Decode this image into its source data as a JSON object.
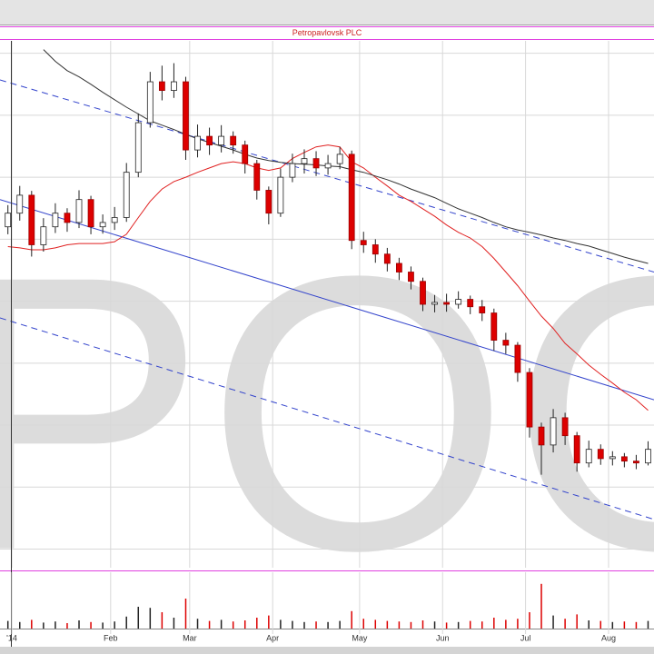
{
  "chart_data": {
    "type": "candlestick",
    "title": "Petropavlovsk PLC",
    "watermark": "POG",
    "x": [
      2,
      5,
      8,
      11,
      14,
      17,
      20,
      23,
      26,
      29,
      32,
      35,
      38,
      41,
      44,
      47,
      50,
      53,
      56,
      59,
      62,
      65,
      68,
      71,
      74,
      77,
      80,
      83,
      86,
      89,
      92,
      95,
      98,
      101,
      104,
      107,
      110,
      113,
      116,
      119,
      122,
      125,
      128,
      131,
      134,
      137,
      140,
      143,
      146,
      149,
      152,
      155,
      158,
      161,
      164
    ],
    "open": [
      62.0,
      64.2,
      67.1,
      59.1,
      62.0,
      64.2,
      62.7,
      66.4,
      62.0,
      62.7,
      63.5,
      70.8,
      78.8,
      85.4,
      84.0,
      85.4,
      74.4,
      76.6,
      75.2,
      76.6,
      75.2,
      72.2,
      67.9,
      64.2,
      70.0,
      72.2,
      73.0,
      71.5,
      72.2,
      73.7,
      59.8,
      59.1,
      57.6,
      56.1,
      54.7,
      53.2,
      49.5,
      49.8,
      49.5,
      50.3,
      49.1,
      48.1,
      43.7,
      42.9,
      38.5,
      29.7,
      26.8,
      31.2,
      28.3,
      23.9,
      26.1,
      24.6,
      24.9,
      24.2,
      23.9
    ],
    "high": [
      65.5,
      68.6,
      67.8,
      63.4,
      65.8,
      65.0,
      67.9,
      67.0,
      64.0,
      65.2,
      72.3,
      80.3,
      87.0,
      88.0,
      88.4,
      86.2,
      78.5,
      78.0,
      78.4,
      77.4,
      75.9,
      72.8,
      68.5,
      71.4,
      73.8,
      74.5,
      74.2,
      73.6,
      74.9,
      74.3,
      61.2,
      60.0,
      58.6,
      57.0,
      55.6,
      53.8,
      51.0,
      51.2,
      51.6,
      50.9,
      50.2,
      48.8,
      44.9,
      43.4,
      39.2,
      30.4,
      32.6,
      32.0,
      28.9,
      27.5,
      26.9,
      25.8,
      25.5,
      25.2,
      27.4
    ],
    "low": [
      60.8,
      63.0,
      57.2,
      58.0,
      61.0,
      61.2,
      61.8,
      60.8,
      60.9,
      61.5,
      62.8,
      70.0,
      78.0,
      82.4,
      82.8,
      72.8,
      73.2,
      73.6,
      74.0,
      73.8,
      70.6,
      66.4,
      62.4,
      63.6,
      69.2,
      70.6,
      70.2,
      70.4,
      71.3,
      58.4,
      57.8,
      56.2,
      54.8,
      53.4,
      51.9,
      48.4,
      48.2,
      48.3,
      48.8,
      47.9,
      46.8,
      42.0,
      41.5,
      37.0,
      28.0,
      22.0,
      25.6,
      26.8,
      22.5,
      23.2,
      23.6,
      23.5,
      23.2,
      22.9,
      23.5
    ],
    "close": [
      64.2,
      67.1,
      59.1,
      62.0,
      64.2,
      62.7,
      66.4,
      62.0,
      62.7,
      63.5,
      70.8,
      78.8,
      85.4,
      84.0,
      85.4,
      74.4,
      76.6,
      75.2,
      76.6,
      75.2,
      72.2,
      67.9,
      64.2,
      70.0,
      72.2,
      73.0,
      71.5,
      72.2,
      73.7,
      59.8,
      59.1,
      57.6,
      56.1,
      54.7,
      53.2,
      49.5,
      49.8,
      49.5,
      50.3,
      49.1,
      48.1,
      43.7,
      42.9,
      38.5,
      29.7,
      26.8,
      31.2,
      28.3,
      23.9,
      26.1,
      24.6,
      24.9,
      24.2,
      23.9,
      26.1
    ],
    "volume": [
      14,
      12,
      16,
      11,
      13,
      10,
      15,
      12,
      11,
      13,
      22,
      40,
      38,
      30,
      20,
      55,
      18,
      14,
      16,
      13,
      15,
      20,
      24,
      16,
      14,
      12,
      13,
      12,
      14,
      32,
      18,
      16,
      14,
      13,
      12,
      15,
      13,
      11,
      12,
      14,
      13,
      20,
      16,
      18,
      30,
      82,
      24,
      18,
      26,
      15,
      14,
      12,
      13,
      12,
      14
    ],
    "volume_ylim": [
      0,
      100
    ],
    "xlim": [
      0,
      165.5
    ],
    "ylim": [
      7,
      92
    ],
    "xticks": [
      {
        "value": 3,
        "label": "'14"
      },
      {
        "value": 28,
        "label": "Feb"
      },
      {
        "value": 48,
        "label": "Mar"
      },
      {
        "value": 69,
        "label": "Apr"
      },
      {
        "value": 91,
        "label": "May"
      },
      {
        "value": 112,
        "label": "Jun"
      },
      {
        "value": 133,
        "label": "Jul"
      },
      {
        "value": 154,
        "label": "Aug"
      }
    ],
    "y_gridlines": [
      10,
      20,
      30,
      40,
      50,
      60,
      70,
      80,
      90
    ],
    "up_color": "#ffffff",
    "down_color": "#dd0000",
    "moving_averages": [
      {
        "color": "#e02020",
        "values": [
          58.8,
          58.6,
          58.3,
          58.3,
          58.6,
          59.1,
          59.3,
          59.3,
          59.3,
          59.6,
          60.8,
          63.5,
          66.1,
          68.1,
          69.3,
          70.0,
          70.8,
          71.5,
          72.2,
          72.5,
          72.2,
          71.5,
          71.1,
          71.5,
          73.0,
          74.0,
          74.9,
          75.2,
          74.9,
          72.5,
          71.5,
          70.0,
          68.6,
          67.1,
          66.1,
          64.9,
          63.7,
          62.3,
          61.1,
          60.2,
          58.8,
          56.9,
          54.7,
          52.5,
          50.0,
          47.6,
          45.6,
          43.2,
          41.5,
          39.7,
          38.2,
          36.8,
          35.3,
          34.1,
          32.4
        ]
      },
      {
        "color": "#333333",
        "values": [
          null,
          null,
          null,
          90.6,
          88.7,
          87.2,
          86.2,
          85.0,
          83.7,
          82.5,
          81.3,
          80.2,
          79.1,
          78.4,
          77.7,
          76.9,
          76.2,
          75.6,
          75.0,
          74.4,
          73.7,
          73.1,
          72.7,
          72.4,
          72.2,
          72.1,
          72.0,
          71.8,
          71.7,
          71.2,
          70.8,
          70.2,
          69.6,
          68.9,
          68.1,
          67.4,
          66.7,
          65.8,
          64.9,
          64.2,
          63.5,
          62.7,
          62.0,
          61.5,
          61.1,
          60.7,
          60.2,
          59.8,
          59.3,
          58.9,
          58.3,
          57.7,
          57.1,
          56.6,
          56.1
        ]
      }
    ],
    "trendlines": [
      {
        "color": "#3344cc",
        "dashed": false,
        "x": [
          0,
          165.5
        ],
        "values": [
          66.4,
          34.1
        ]
      },
      {
        "color": "#3344cc",
        "dashed": true,
        "x": [
          0,
          165.5
        ],
        "values": [
          85.7,
          54.7
        ]
      },
      {
        "color": "#3344cc",
        "dashed": true,
        "x": [
          0,
          165.5
        ],
        "values": [
          47.3,
          14.8
        ]
      }
    ]
  }
}
